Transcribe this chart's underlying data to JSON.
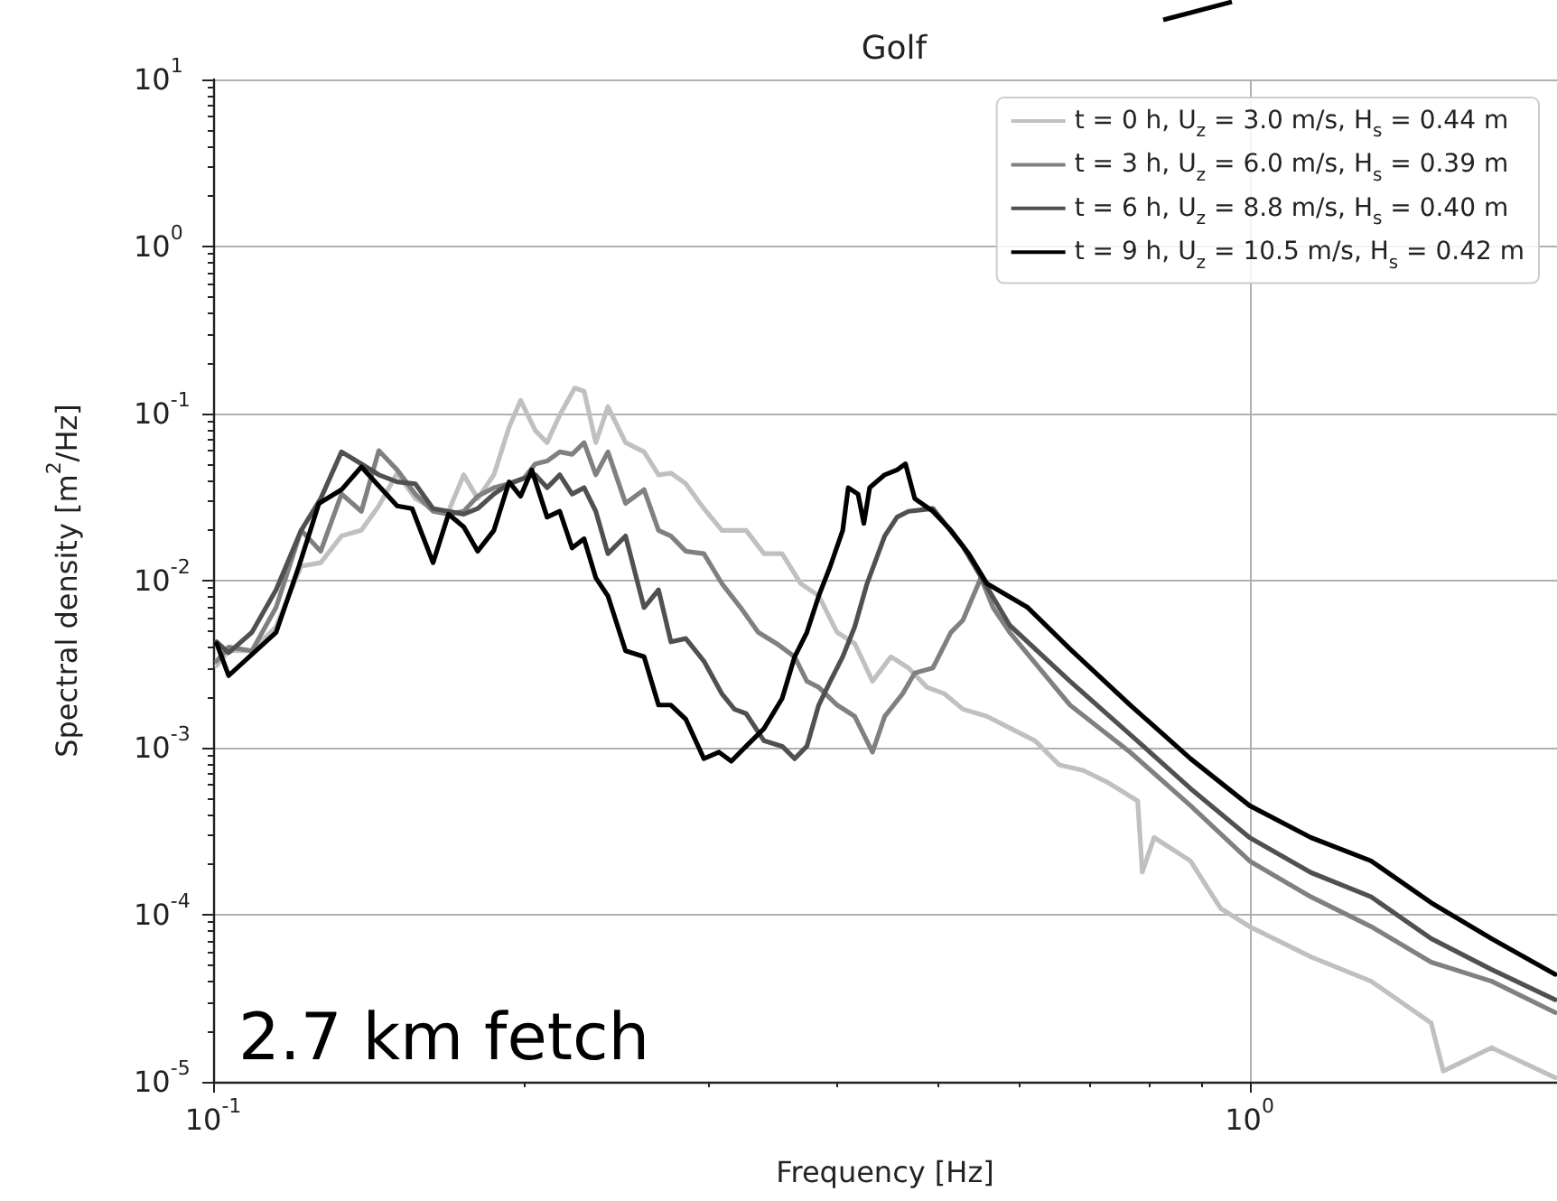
{
  "chart_data": {
    "type": "line",
    "title": "Golf",
    "xlabel": "Frequency [Hz]",
    "ylabel": "Spectral density [m$^{2}$/Hz]",
    "log": "xy",
    "grid": true,
    "legend": "top right",
    "line_style": "solid",
    "marker": "none",
    "xlim": [
      0.1,
      1.98
    ],
    "xticks": [
      {
        "value": 0.1,
        "label": "10$^{-1}$"
      },
      {
        "value": 1,
        "label": "10$^{0}$"
      }
    ],
    "ylim": [
      1e-05,
      10
    ],
    "yticks": [
      {
        "value": 1e-05,
        "label": "10$^{-5}$"
      },
      {
        "value": 0.0001,
        "label": "10$^{-4}$"
      },
      {
        "value": 0.001,
        "label": "10$^{-3}$"
      },
      {
        "value": 0.01,
        "label": "10$^{-2}$"
      },
      {
        "value": 0.1,
        "label": "10$^{-1}$"
      },
      {
        "value": 1,
        "label": "10$^{0}$"
      },
      {
        "value": 10,
        "label": "10$^{1}$"
      }
    ],
    "annotations": [
      "2.7 km fetch"
    ],
    "series": [
      {
        "name": "t = 0 h, U$_{z}$ = 3.0 m/s, H$_{s}$ = 0.44 m",
        "color": "#c0c0c0",
        "x": [
          0.1008,
          0.1035,
          0.109,
          0.115,
          0.1216,
          0.127,
          0.133,
          0.139,
          0.1445,
          0.1505,
          0.1567,
          0.163,
          0.1687,
          0.1745,
          0.18,
          0.1866,
          0.193,
          0.198,
          0.2046,
          0.21,
          0.216,
          0.2233,
          0.228,
          0.234,
          0.2404,
          0.25,
          0.2605,
          0.269,
          0.2765,
          0.2858,
          0.2975,
          0.3097,
          0.3268,
          0.34,
          0.354,
          0.369,
          0.384,
          0.4,
          0.416,
          0.4327,
          0.4508,
          0.4688,
          0.4885,
          0.508,
          0.529,
          0.558,
          0.5886,
          0.621,
          0.655,
          0.6914,
          0.7295,
          0.78,
          0.788,
          0.809,
          0.877,
          0.938,
          1.0,
          1.146,
          1.31,
          1.497,
          1.538,
          1.712,
          1.972
        ],
        "values": [
          0.0031,
          0.0038,
          0.0038,
          0.0053,
          0.0122,
          0.0128,
          0.0185,
          0.02,
          0.028,
          0.044,
          0.031,
          0.027,
          0.026,
          0.043,
          0.031,
          0.043,
          0.083,
          0.12,
          0.079,
          0.067,
          0.098,
          0.142,
          0.136,
          0.067,
          0.11,
          0.067,
          0.059,
          0.043,
          0.044,
          0.038,
          0.027,
          0.02,
          0.02,
          0.0145,
          0.0145,
          0.0096,
          0.0081,
          0.0049,
          0.0042,
          0.0025,
          0.0035,
          0.003,
          0.0023,
          0.0021,
          0.0017,
          0.00154,
          0.0013,
          0.0011,
          0.00079,
          0.00073,
          0.00062,
          0.00048,
          0.00018,
          0.00029,
          0.00021,
          0.000109,
          8.5e-05,
          5.6e-05,
          4e-05,
          2.25e-05,
          1.16e-05,
          1.6e-05,
          1.06e-05
        ]
      },
      {
        "name": "t = 3 h, U$_{z}$ = 6.0 m/s, H$_{s}$ = 0.39 m",
        "color": "#808080",
        "x": [
          0.1008,
          0.1035,
          0.109,
          0.115,
          0.1216,
          0.127,
          0.133,
          0.139,
          0.1445,
          0.1505,
          0.1567,
          0.163,
          0.1687,
          0.1745,
          0.18,
          0.1866,
          0.193,
          0.1995,
          0.2046,
          0.21,
          0.216,
          0.222,
          0.228,
          0.234,
          0.2404,
          0.25,
          0.2605,
          0.269,
          0.2765,
          0.2858,
          0.2975,
          0.3097,
          0.3228,
          0.3357,
          0.3497,
          0.364,
          0.374,
          0.384,
          0.4,
          0.416,
          0.4327,
          0.4446,
          0.4626,
          0.4753,
          0.4948,
          0.515,
          0.529,
          0.5506,
          0.5656,
          0.587,
          0.671,
          0.767,
          0.877,
          1.0,
          1.146,
          1.31,
          1.497,
          1.712,
          1.972
        ],
        "values": [
          0.0033,
          0.004,
          0.0038,
          0.0069,
          0.02,
          0.015,
          0.033,
          0.026,
          0.06,
          0.046,
          0.033,
          0.026,
          0.025,
          0.026,
          0.032,
          0.036,
          0.038,
          0.041,
          0.05,
          0.052,
          0.059,
          0.057,
          0.067,
          0.043,
          0.059,
          0.029,
          0.035,
          0.02,
          0.0185,
          0.015,
          0.0145,
          0.0096,
          0.0069,
          0.0049,
          0.0042,
          0.0035,
          0.0025,
          0.0023,
          0.0018,
          0.00154,
          0.00094,
          0.00154,
          0.0021,
          0.0028,
          0.003,
          0.0049,
          0.0058,
          0.0104,
          0.0069,
          0.0049,
          0.0018,
          0.00094,
          0.00045,
          0.00021,
          0.000128,
          8.5e-05,
          5.2e-05,
          4e-05,
          2.6e-05
        ]
      },
      {
        "name": "t = 6 h, U$_{z}$ = 8.8 m/s, H$_{s}$ = 0.40 m",
        "color": "#505050",
        "x": [
          0.1008,
          0.1035,
          0.109,
          0.115,
          0.1216,
          0.127,
          0.133,
          0.139,
          0.1445,
          0.1505,
          0.1567,
          0.163,
          0.1687,
          0.1745,
          0.18,
          0.1866,
          0.193,
          0.1995,
          0.2046,
          0.21,
          0.216,
          0.222,
          0.228,
          0.234,
          0.2404,
          0.25,
          0.2605,
          0.269,
          0.2765,
          0.2858,
          0.2975,
          0.3097,
          0.3184,
          0.3268,
          0.34,
          0.354,
          0.364,
          0.374,
          0.384,
          0.394,
          0.405,
          0.416,
          0.4275,
          0.4446,
          0.457,
          0.4688,
          0.4948,
          0.529,
          0.587,
          0.671,
          0.767,
          0.877,
          1.0,
          1.146,
          1.31,
          1.497,
          1.712,
          1.972
        ],
        "values": [
          0.0043,
          0.0037,
          0.0049,
          0.0088,
          0.02,
          0.031,
          0.059,
          0.05,
          0.043,
          0.039,
          0.038,
          0.027,
          0.026,
          0.025,
          0.027,
          0.033,
          0.038,
          0.041,
          0.043,
          0.036,
          0.043,
          0.033,
          0.036,
          0.026,
          0.0145,
          0.0185,
          0.0069,
          0.0088,
          0.0043,
          0.0045,
          0.0033,
          0.0021,
          0.0017,
          0.0016,
          0.0011,
          0.00102,
          0.00086,
          0.00102,
          0.0018,
          0.0025,
          0.0035,
          0.0053,
          0.0096,
          0.0185,
          0.024,
          0.026,
          0.027,
          0.016,
          0.0054,
          0.0025,
          0.0012,
          0.00057,
          0.00029,
          0.000179,
          0.000128,
          7.2e-05,
          4.7e-05,
          3.1e-05
        ]
      },
      {
        "name": "t = 9 h, U$_{z}$ = 10.5 m/s, H$_{s}$ = 0.42 m",
        "color": "#000000",
        "x": [
          0.1008,
          0.1035,
          0.115,
          0.121,
          0.1265,
          0.133,
          0.139,
          0.1505,
          0.1556,
          0.163,
          0.1687,
          0.1745,
          0.18,
          0.1866,
          0.193,
          0.198,
          0.203,
          0.21,
          0.216,
          0.222,
          0.228,
          0.234,
          0.2404,
          0.25,
          0.2605,
          0.269,
          0.2765,
          0.2858,
          0.2975,
          0.3077,
          0.3162,
          0.3268,
          0.34,
          0.354,
          0.364,
          0.374,
          0.384,
          0.394,
          0.405,
          0.41,
          0.419,
          0.4245,
          0.43,
          0.4446,
          0.457,
          0.4656,
          0.4753,
          0.4948,
          0.515,
          0.5358,
          0.558,
          0.611,
          0.671,
          0.767,
          0.877,
          1.0,
          1.146,
          1.31,
          1.497,
          1.712,
          1.972
        ],
        "values": [
          0.0042,
          0.0027,
          0.0049,
          0.0122,
          0.029,
          0.035,
          0.048,
          0.028,
          0.027,
          0.0128,
          0.025,
          0.021,
          0.015,
          0.02,
          0.039,
          0.032,
          0.046,
          0.024,
          0.026,
          0.0157,
          0.0178,
          0.0104,
          0.0081,
          0.0038,
          0.0035,
          0.0018,
          0.0018,
          0.00148,
          0.00086,
          0.00094,
          0.00083,
          0.00102,
          0.0013,
          0.00197,
          0.0035,
          0.0049,
          0.0081,
          0.0122,
          0.02,
          0.036,
          0.033,
          0.022,
          0.036,
          0.043,
          0.046,
          0.05,
          0.031,
          0.026,
          0.02,
          0.0145,
          0.0096,
          0.0069,
          0.0039,
          0.0018,
          0.00086,
          0.00045,
          0.00029,
          0.00021,
          0.000118,
          7.2e-05,
          4.4e-05
        ]
      }
    ]
  }
}
